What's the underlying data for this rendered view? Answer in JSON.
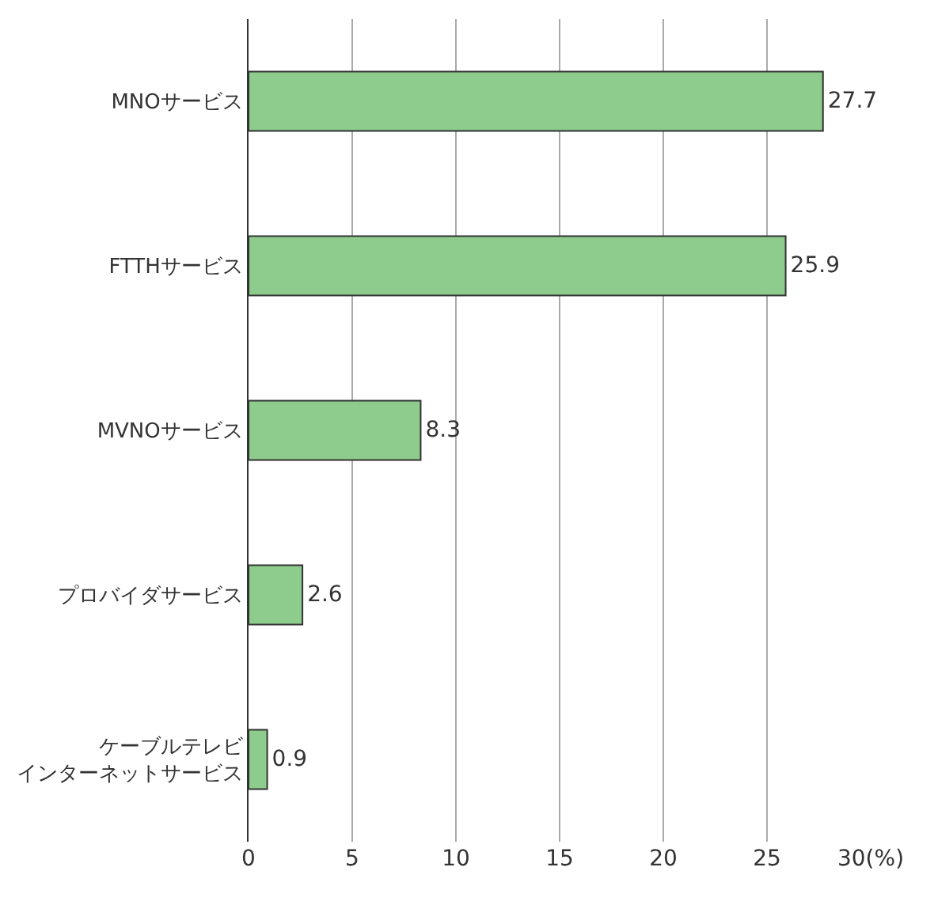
{
  "chart_data": {
    "type": "bar",
    "orientation": "horizontal",
    "categories": [
      "MNOサービス",
      "FTTHサービス",
      "MVNOサービス",
      "プロバイダサービス",
      "ケーブルテレビインターネットサービス"
    ],
    "values": [
      27.7,
      25.9,
      8.3,
      2.6,
      0.9
    ],
    "color": "#8dcc8d",
    "xlim": [
      0,
      30
    ],
    "xticks": [
      0,
      5,
      10,
      15,
      20,
      25,
      {
        "value": 30,
        "label": "30(%)"
      }
    ],
    "grid": "x",
    "data_labels": true,
    "legend": false
  }
}
